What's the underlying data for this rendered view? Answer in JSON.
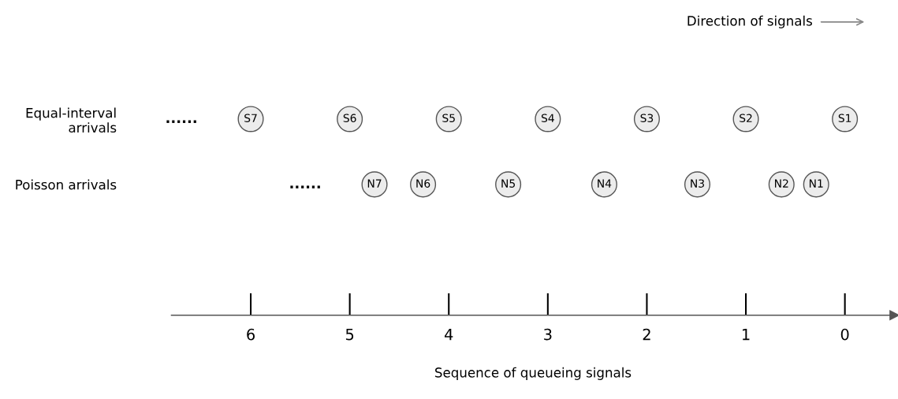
{
  "chart_data": {
    "type": "scatter",
    "orientation": "horizontal",
    "xlabel": "Sequence of queueing signals",
    "categories": [
      "Equal-interval\narrivals",
      "Poisson arrivals"
    ],
    "series": [
      {
        "color": "#ececec",
        "values": [
          0,
          0.29
        ],
        "value_labels": [
          "S1",
          "N1"
        ]
      },
      {
        "color": "#ececec",
        "values": [
          1,
          0.64
        ],
        "value_labels": [
          "S2",
          "N2"
        ]
      },
      {
        "color": "#ececec",
        "values": [
          2,
          1.49
        ],
        "value_labels": [
          "S3",
          "N3"
        ]
      },
      {
        "color": "#ececec",
        "values": [
          3,
          2.43
        ],
        "value_labels": [
          "S4",
          "N4"
        ]
      },
      {
        "color": "#ececec",
        "values": [
          4,
          3.4
        ],
        "value_labels": [
          "S5",
          "N5"
        ]
      },
      {
        "color": "#ececec",
        "values": [
          5,
          4.26
        ],
        "value_labels": [
          "S6",
          "N6"
        ]
      },
      {
        "color": "#ececec",
        "values": [
          6,
          4.75
        ],
        "value_labels": [
          "S7",
          "N7"
        ]
      }
    ],
    "xlim": [
      6.8,
      -0.5
    ],
    "xticks": [
      0,
      1,
      2,
      3,
      4,
      5,
      6
    ],
    "marker": "circle",
    "grid": false,
    "annotations": [
      "......",
      "......",
      "Direction of signals"
    ]
  }
}
